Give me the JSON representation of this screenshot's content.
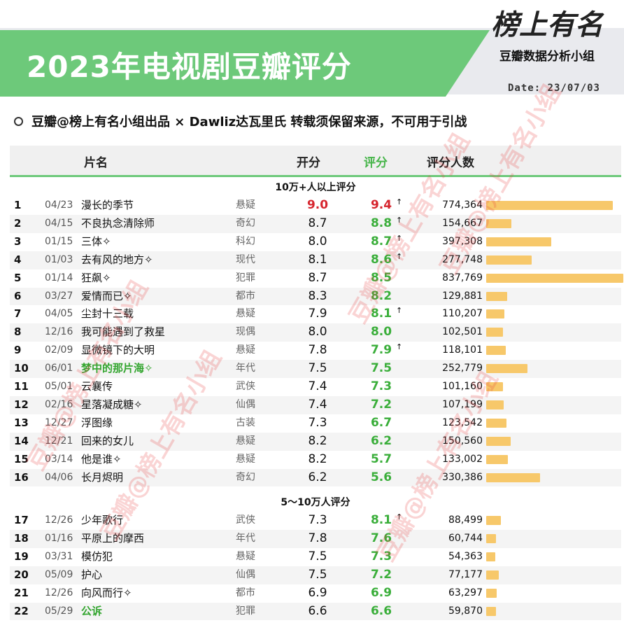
{
  "header": {
    "title": "2023年电视剧豆瓣评分",
    "brand_logo": "榜上有名",
    "brand_sub": "豆瓣数据分析小组",
    "date": "Date: 23/07/03"
  },
  "note": "豆瓣@榜上有名小组出品 × Dawliz达瓦里氏 转载须保留来源，不可用于引战",
  "columns": {
    "name": "片名",
    "open": "开分",
    "score": "评分",
    "count": "评分人数"
  },
  "sections": {
    "s1": "10万+人以上评分",
    "s2": "5～10万人评分"
  },
  "watermark": "豆瓣@榜上有名小组",
  "colors": {
    "accent_green": "#6dc97a",
    "score_green": "#3aae3a",
    "highlight_red": "#d6252e",
    "bar_orange": "#f7c86a"
  },
  "max_count": 837769,
  "rows": [
    {
      "rank": "1",
      "date": "04/23",
      "name": "漫长的季节",
      "genre": "悬疑",
      "open": "9.0",
      "score": "9.4",
      "arrow": "↑",
      "count": "774,364",
      "count_value": 774364,
      "red": true
    },
    {
      "rank": "2",
      "date": "04/15",
      "name": "不良执念清除师",
      "genre": "奇幻",
      "open": "8.7",
      "score": "8.8",
      "arrow": "↑",
      "count": "154,667",
      "count_value": 154667
    },
    {
      "rank": "3",
      "date": "01/15",
      "name": "三体✧",
      "genre": "科幻",
      "open": "8.0",
      "score": "8.7",
      "arrow": "↑",
      "count": "397,308",
      "count_value": 397308
    },
    {
      "rank": "4",
      "date": "01/03",
      "name": "去有风的地方✧",
      "genre": "现代",
      "open": "8.1",
      "score": "8.6",
      "arrow": "↑",
      "count": "277,748",
      "count_value": 277748
    },
    {
      "rank": "5",
      "date": "01/14",
      "name": "狂飙✧",
      "genre": "犯罪",
      "open": "8.7",
      "score": "8.5",
      "arrow": "",
      "count": "837,769",
      "count_value": 837769
    },
    {
      "rank": "6",
      "date": "03/27",
      "name": "爱情而已✧",
      "genre": "都市",
      "open": "8.3",
      "score": "8.2",
      "arrow": "",
      "count": "129,881",
      "count_value": 129881
    },
    {
      "rank": "7",
      "date": "04/05",
      "name": "尘封十三载",
      "genre": "悬疑",
      "open": "7.9",
      "score": "8.1",
      "arrow": "↑",
      "count": "110,207",
      "count_value": 110207
    },
    {
      "rank": "8",
      "date": "12/16",
      "name": "我可能遇到了救星",
      "genre": "现偶",
      "open": "8.0",
      "score": "8.0",
      "arrow": "",
      "count": "102,501",
      "count_value": 102501
    },
    {
      "rank": "9",
      "date": "02/09",
      "name": "显微镜下的大明",
      "genre": "悬疑",
      "open": "7.8",
      "score": "7.9",
      "arrow": "↑",
      "count": "118,101",
      "count_value": 118101
    },
    {
      "rank": "10",
      "date": "06/01",
      "name": "梦中的那片海✧",
      "genre": "年代",
      "open": "7.5",
      "score": "7.5",
      "arrow": "",
      "count": "252,779",
      "count_value": 252779,
      "green_name": true
    },
    {
      "rank": "11",
      "date": "05/01",
      "name": "云襄传",
      "genre": "武侠",
      "open": "7.4",
      "score": "7.3",
      "arrow": "",
      "count": "101,160",
      "count_value": 101160
    },
    {
      "rank": "12",
      "date": "02/16",
      "name": "星落凝成糖✧",
      "genre": "仙偶",
      "open": "7.4",
      "score": "7.2",
      "arrow": "",
      "count": "107,199",
      "count_value": 107199
    },
    {
      "rank": "13",
      "date": "12/27",
      "name": "浮图缘",
      "genre": "古装",
      "open": "7.3",
      "score": "6.7",
      "arrow": "",
      "count": "123,542",
      "count_value": 123542
    },
    {
      "rank": "14",
      "date": "12/21",
      "name": "回来的女儿",
      "genre": "悬疑",
      "open": "8.2",
      "score": "6.2",
      "arrow": "",
      "count": "150,560",
      "count_value": 150560
    },
    {
      "rank": "15",
      "date": "03/14",
      "name": "他是谁✧",
      "genre": "悬疑",
      "open": "8.2",
      "score": "5.7",
      "arrow": "",
      "count": "133,002",
      "count_value": 133002
    },
    {
      "rank": "16",
      "date": "04/06",
      "name": "长月烬明",
      "genre": "奇幻",
      "open": "6.2",
      "score": "5.6",
      "arrow": "",
      "count": "330,386",
      "count_value": 330386
    },
    {
      "rank": "17",
      "date": "12/26",
      "name": "少年歌行",
      "genre": "武侠",
      "open": "7.3",
      "score": "8.1",
      "arrow": "↑",
      "count": "88,499",
      "count_value": 88499
    },
    {
      "rank": "18",
      "date": "01/16",
      "name": "平原上的摩西",
      "genre": "年代",
      "open": "7.8",
      "score": "7.6",
      "arrow": "",
      "count": "60,744",
      "count_value": 60744
    },
    {
      "rank": "19",
      "date": "03/31",
      "name": "模仿犯",
      "genre": "悬疑",
      "open": "7.5",
      "score": "7.3",
      "arrow": "",
      "count": "54,363",
      "count_value": 54363
    },
    {
      "rank": "20",
      "date": "05/09",
      "name": "护心",
      "genre": "仙偶",
      "open": "7.5",
      "score": "7.2",
      "arrow": "",
      "count": "77,177",
      "count_value": 77177
    },
    {
      "rank": "21",
      "date": "12/26",
      "name": "向风而行✧",
      "genre": "都市",
      "open": "6.9",
      "score": "6.9",
      "arrow": "",
      "count": "63,297",
      "count_value": 63297
    },
    {
      "rank": "22",
      "date": "05/29",
      "name": "公诉",
      "genre": "犯罪",
      "open": "6.6",
      "score": "6.6",
      "arrow": "",
      "count": "59,870",
      "count_value": 59870,
      "green_name": true
    }
  ]
}
